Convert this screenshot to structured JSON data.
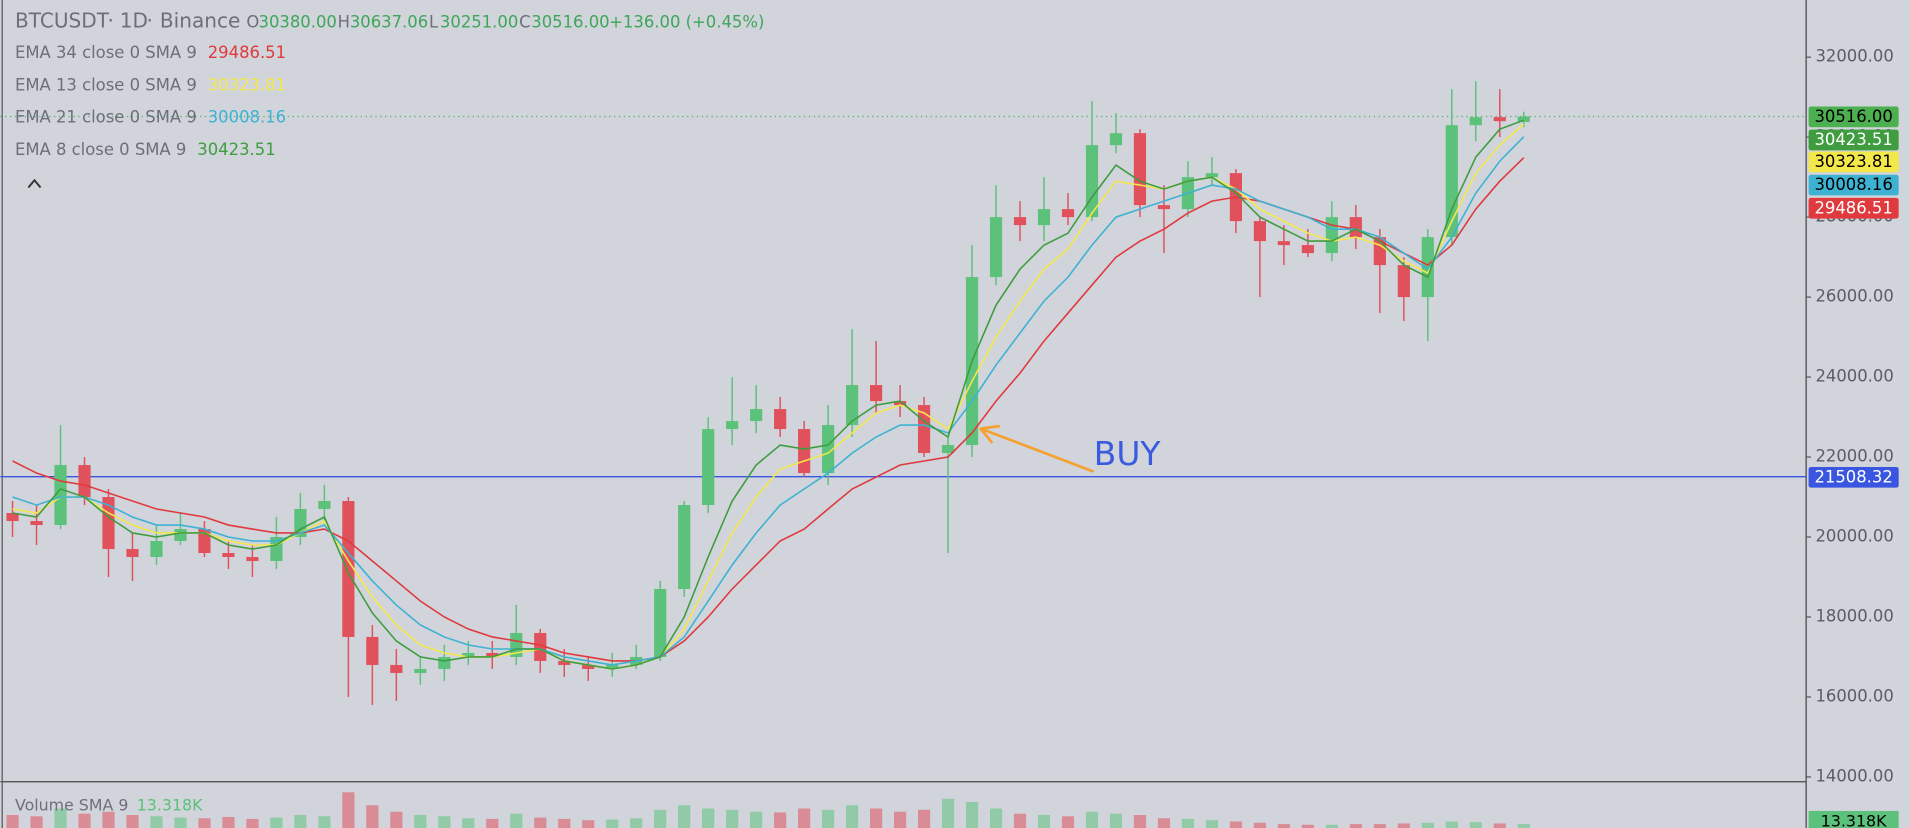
{
  "header": {
    "symbol": "BTCUSDT",
    "interval": "1D",
    "exchange": "Binance",
    "o_label": "O",
    "open": "30380.00",
    "h_label": "H",
    "high": "30637.06",
    "l_label": "L",
    "low": "30251.00",
    "c_label": "C",
    "close": "30516.00",
    "change": "+136.00 (+0.45%)"
  },
  "chart_data": {
    "type": "candlestick",
    "open": [
      20600,
      20400,
      20300,
      21800,
      21000,
      19700,
      19500,
      19900,
      20200,
      19600,
      19500,
      19400,
      20000,
      20700,
      20900,
      17500,
      16800,
      16600,
      16700,
      17000,
      17100,
      17000,
      17600,
      16900,
      16800,
      16700,
      16800,
      17000,
      18700,
      20800,
      22700,
      22900,
      23200,
      22700,
      21600,
      22800,
      23800,
      23400,
      23300,
      22100,
      22300,
      26500,
      28000,
      27800,
      28200,
      28000,
      29800,
      30100,
      28300,
      28200,
      29000,
      29100,
      27900,
      27400,
      27300,
      27100,
      28000,
      27500,
      26800,
      26000,
      27500,
      30300,
      30500,
      30380
    ],
    "high": [
      20900,
      20800,
      22800,
      22000,
      21200,
      20100,
      20300,
      20600,
      20400,
      19900,
      19800,
      20500,
      21100,
      21300,
      21000,
      17800,
      17200,
      17000,
      17300,
      17400,
      17400,
      18300,
      17700,
      17200,
      17000,
      17100,
      17300,
      18900,
      20900,
      23000,
      24000,
      23800,
      23500,
      22900,
      23300,
      25200,
      24900,
      23800,
      23500,
      22500,
      27300,
      28800,
      28400,
      29000,
      28600,
      30900,
      30600,
      30200,
      28800,
      29400,
      29500,
      29200,
      28000,
      27800,
      27700,
      28400,
      28300,
      27700,
      27000,
      27700,
      31200,
      31400,
      31200,
      30637.06
    ],
    "low": [
      20000,
      19800,
      20200,
      20800,
      19000,
      18900,
      19300,
      19800,
      19500,
      19200,
      19000,
      19200,
      19800,
      20400,
      16000,
      15800,
      15900,
      16300,
      16400,
      16800,
      16700,
      16800,
      16600,
      16500,
      16400,
      16500,
      16700,
      16900,
      18500,
      20600,
      22300,
      22600,
      22500,
      21500,
      21300,
      22500,
      23100,
      23000,
      22000,
      19600,
      22000,
      26300,
      27400,
      27400,
      27800,
      27900,
      29600,
      28000,
      27100,
      28000,
      28800,
      27600,
      26000,
      26800,
      27000,
      26900,
      27200,
      25600,
      25400,
      24900,
      27300,
      29900,
      30000,
      30251
    ],
    "close": [
      20400,
      20300,
      21800,
      21000,
      19700,
      19500,
      19900,
      20200,
      19600,
      19500,
      19400,
      20000,
      20700,
      20900,
      17500,
      16800,
      16600,
      16700,
      17000,
      17100,
      17000,
      17600,
      16900,
      16800,
      16700,
      16800,
      17000,
      18700,
      20800,
      22700,
      22900,
      23200,
      22700,
      21600,
      22800,
      23800,
      23400,
      23300,
      22100,
      22300,
      26500,
      28000,
      27800,
      28200,
      28000,
      29800,
      30100,
      28300,
      28200,
      29000,
      29100,
      27900,
      27400,
      27300,
      27100,
      28000,
      27500,
      26800,
      26000,
      27500,
      30300,
      30500,
      30400,
      30516
    ],
    "up_color": "#5cc17a",
    "down_color": "#e0515c",
    "ylim": [
      13880,
      33430
    ],
    "yticks": [
      {
        "value": 14000,
        "label": "14000.00"
      },
      {
        "value": 16000,
        "label": "16000.00"
      },
      {
        "value": 18000,
        "label": "18000.00"
      },
      {
        "value": 20000,
        "label": "20000.00"
      },
      {
        "value": 22000,
        "label": "22000.00"
      },
      {
        "value": 24000,
        "label": "24000.00"
      },
      {
        "value": 26000,
        "label": "26000.00"
      },
      {
        "value": 28000,
        "label": "28000.00"
      },
      {
        "value": 30000,
        "label": "30000.00"
      },
      {
        "value": 32000,
        "label": "32000.00"
      }
    ],
    "series": [
      {
        "name": "EMA 34 close 0 SMA 9",
        "color": "#e0393e",
        "values": [
          21900,
          21600,
          21400,
          21300,
          21100,
          20900,
          20700,
          20600,
          20500,
          20300,
          20200,
          20100,
          20100,
          20200,
          19900,
          19400,
          18900,
          18400,
          18000,
          17700,
          17500,
          17400,
          17300,
          17100,
          17000,
          16900,
          16900,
          17000,
          17400,
          18000,
          18700,
          19300,
          19900,
          20200,
          20700,
          21200,
          21500,
          21800,
          21900,
          22000,
          22600,
          23400,
          24100,
          24900,
          25600,
          26300,
          27000,
          27400,
          27700,
          28100,
          28400,
          28500,
          28400,
          28200,
          28000,
          27800,
          27700,
          27400,
          27100,
          26800,
          27300,
          28200,
          28900,
          29486.51
        ]
      },
      {
        "name": "EMA 13 close 0 SMA 9",
        "color": "#f3e84a",
        "values": [
          20700,
          20600,
          21000,
          21000,
          20600,
          20300,
          20100,
          20100,
          20100,
          19900,
          19800,
          19800,
          20100,
          20400,
          19400,
          18500,
          17800,
          17300,
          17100,
          17000,
          17000,
          17100,
          17200,
          16900,
          16800,
          16700,
          16800,
          17000,
          17700,
          18900,
          20100,
          21000,
          21700,
          21900,
          22100,
          22600,
          23100,
          23300,
          23100,
          22700,
          23900,
          25000,
          25900,
          26700,
          27200,
          28100,
          28900,
          28800,
          28700,
          28900,
          29000,
          28700,
          28200,
          27900,
          27600,
          27400,
          27500,
          27300,
          26900,
          26600,
          27900,
          29100,
          29800,
          30323.81
        ]
      },
      {
        "name": "EMA 21 close 0 SMA 9",
        "color": "#3db2d2",
        "values": [
          21000,
          20800,
          21000,
          21000,
          20800,
          20500,
          20300,
          20300,
          20200,
          20000,
          19900,
          19900,
          20100,
          20300,
          19600,
          18900,
          18300,
          17800,
          17500,
          17300,
          17200,
          17200,
          17200,
          17000,
          16900,
          16800,
          16900,
          17000,
          17500,
          18400,
          19300,
          20100,
          20800,
          21200,
          21600,
          22100,
          22500,
          22800,
          22800,
          22600,
          23400,
          24300,
          25100,
          25900,
          26500,
          27300,
          28000,
          28200,
          28400,
          28600,
          28800,
          28700,
          28400,
          28200,
          28000,
          27700,
          27700,
          27500,
          27100,
          26700,
          27500,
          28600,
          29400,
          30008.16
        ]
      },
      {
        "name": "EMA 8 close 0 SMA 9",
        "color": "#3f9d3f",
        "values": [
          20600,
          20500,
          21200,
          21000,
          20500,
          20100,
          20000,
          20100,
          20100,
          19800,
          19700,
          19800,
          20200,
          20500,
          19100,
          18100,
          17400,
          17000,
          16900,
          17000,
          17000,
          17200,
          17200,
          16900,
          16800,
          16700,
          16800,
          17000,
          18000,
          19500,
          20900,
          21800,
          22300,
          22200,
          22300,
          22900,
          23300,
          23400,
          22900,
          22500,
          24400,
          25800,
          26700,
          27300,
          27600,
          28500,
          29300,
          28900,
          28700,
          28900,
          29000,
          28600,
          28000,
          27700,
          27400,
          27400,
          27700,
          27400,
          26800,
          26500,
          28200,
          29500,
          30200,
          30423.51
        ]
      }
    ],
    "last_price": {
      "value": 30516,
      "label": "30516.00"
    },
    "hline": 21508.32,
    "annotation": "BUY",
    "volume": {
      "name": "Volume SMA 9",
      "sma": {
        "value": 13.318,
        "label": "13.318K"
      },
      "ylim": [
        0,
        60
      ],
      "values": [
        20,
        18,
        30,
        22,
        25,
        20,
        18,
        16,
        15,
        17,
        14,
        16,
        20,
        18,
        55,
        35,
        25,
        20,
        18,
        15,
        14,
        22,
        16,
        14,
        12,
        13,
        15,
        28,
        35,
        30,
        28,
        25,
        24,
        30,
        28,
        35,
        30,
        25,
        28,
        45,
        40,
        30,
        22,
        20,
        18,
        25,
        22,
        20,
        15,
        14,
        12,
        10,
        8,
        6,
        5,
        5,
        6,
        6,
        7,
        8,
        10,
        9,
        7,
        6
      ]
    }
  }
}
